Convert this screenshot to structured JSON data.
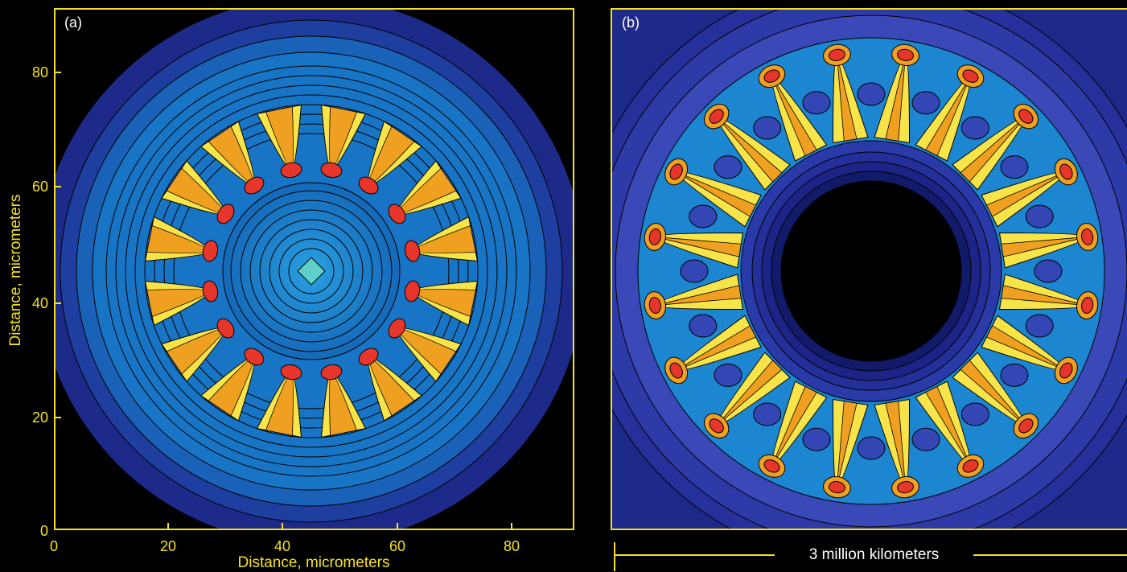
{
  "panel_a": {
    "label": "(a)",
    "y_axis_label": "Distance, micrometers",
    "x_axis_label": "Distance, micrometers",
    "y_ticks": [
      "0",
      "20",
      "40",
      "60",
      "80"
    ],
    "x_ticks": [
      "0",
      "20",
      "40",
      "60",
      "80"
    ],
    "plume_count": 16
  },
  "panel_b": {
    "label": "(b)",
    "plume_count": 20,
    "scale_bar_label": "3 million kilometers"
  },
  "colors": {
    "axis": "#f5e21f",
    "background": "#000000",
    "outer": "#1e2a8a",
    "mid": "#1f78c8",
    "plume_hot": "#e6352b",
    "plume_warm": "#f0a020",
    "plume_edge": "#f7e448"
  }
}
